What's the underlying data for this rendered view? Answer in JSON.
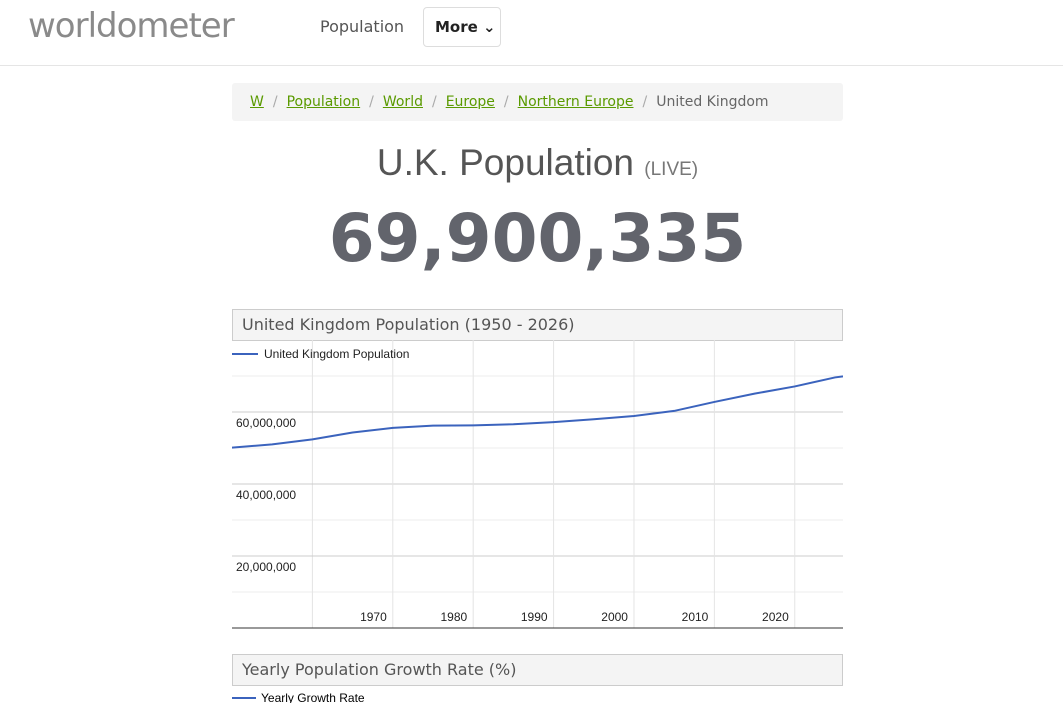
{
  "header": {
    "logo": "worldometer",
    "nav": [
      "Population",
      "More"
    ]
  },
  "breadcrumb": [
    "W",
    "Population",
    "World",
    "Europe",
    "Northern Europe",
    "United Kingdom"
  ],
  "heading": {
    "title": "U.K. Population",
    "tag": "(LIVE)"
  },
  "counter": "69,900,335",
  "chart_data": {
    "type": "line",
    "title": "United Kingdom Population (1950 - 2026)",
    "x": [
      1950,
      1955,
      1960,
      1965,
      1970,
      1975,
      1980,
      1985,
      1990,
      1995,
      2000,
      2005,
      2010,
      2015,
      2020,
      2025,
      2026
    ],
    "series": [
      {
        "name": "United Kingdom Population",
        "color": "#3b63bd",
        "values": [
          50100000,
          51000000,
          52400000,
          54300000,
          55600000,
          56200000,
          56300000,
          56600000,
          57200000,
          58000000,
          58900000,
          60300000,
          62800000,
          65100000,
          67100000,
          69600000,
          69900000
        ]
      }
    ],
    "xlim": [
      1950,
      2026
    ],
    "xticks": [
      1970,
      1980,
      1990,
      2000,
      2010,
      2020
    ],
    "minor_xticks": [
      1960
    ],
    "ylim": [
      0,
      80000000
    ],
    "yticks": [
      {
        "value": 20000000,
        "label": "20,000,000"
      },
      {
        "value": 40000000,
        "label": "40,000,000"
      },
      {
        "value": 60000000,
        "label": "60,000,000"
      }
    ],
    "minor_yticks": [
      10000000,
      30000000,
      50000000,
      70000000
    ],
    "grid": true
  },
  "growth_chart": {
    "title": "Yearly Population Growth Rate (%)",
    "legend": "Yearly Growth Rate"
  }
}
